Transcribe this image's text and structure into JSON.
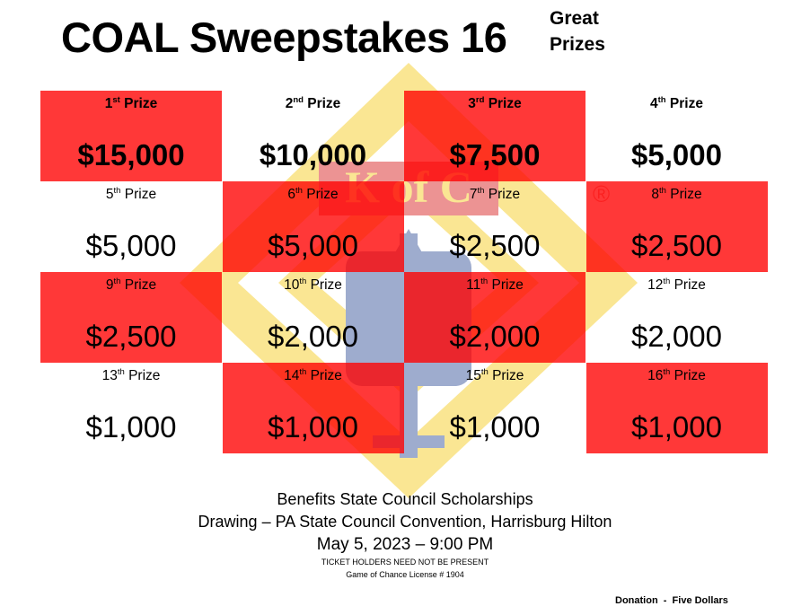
{
  "header": {
    "title": "COAL Sweepstakes 16",
    "side_line1": "Great",
    "side_line2": "Prizes"
  },
  "prizes": [
    {
      "num": "1",
      "suffix": "st",
      "amount": "$15,000"
    },
    {
      "num": "2",
      "suffix": "nd",
      "amount": "$10,000"
    },
    {
      "num": "3",
      "suffix": "rd",
      "amount": "$7,500"
    },
    {
      "num": "4",
      "suffix": "th",
      "amount": "$5,000"
    },
    {
      "num": "5",
      "suffix": "th",
      "amount": "$5,000"
    },
    {
      "num": "6",
      "suffix": "th",
      "amount": "$5,000"
    },
    {
      "num": "7",
      "suffix": "th",
      "amount": "$2,500"
    },
    {
      "num": "8",
      "suffix": "th",
      "amount": "$2,500"
    },
    {
      "num": "9",
      "suffix": "th",
      "amount": "$2,500"
    },
    {
      "num": "10",
      "suffix": "th",
      "amount": "$2,000"
    },
    {
      "num": "11",
      "suffix": "th",
      "amount": "$2,000"
    },
    {
      "num": "12",
      "suffix": "th",
      "amount": "$2,000"
    },
    {
      "num": "13",
      "suffix": "th",
      "amount": "$1,000"
    },
    {
      "num": "14",
      "suffix": "th",
      "amount": "$1,000"
    },
    {
      "num": "15",
      "suffix": "th",
      "amount": "$1,000"
    },
    {
      "num": "16",
      "suffix": "th",
      "amount": "$1,000"
    }
  ],
  "prize_word": "Prize",
  "footer": {
    "line1": "Benefits State Council Scholarships",
    "line2": "Drawing – PA State Council Convention, Harrisburg Hilton",
    "line3": "May 5, 2023 – 9:00 PM",
    "line4": "TICKET HOLDERS NEED NOT BE PRESENT",
    "line5": "Game of Chance License # 1904"
  },
  "donation": "Donation  -  Five Dollars",
  "emblem": {
    "name": "knights-of-columbus-emblem-icon",
    "text": "K of C",
    "registered": "®"
  },
  "colors": {
    "cell_red": "#ff0000",
    "emblem_gold": "#f5c400",
    "emblem_blue": "#1a3c8c"
  }
}
